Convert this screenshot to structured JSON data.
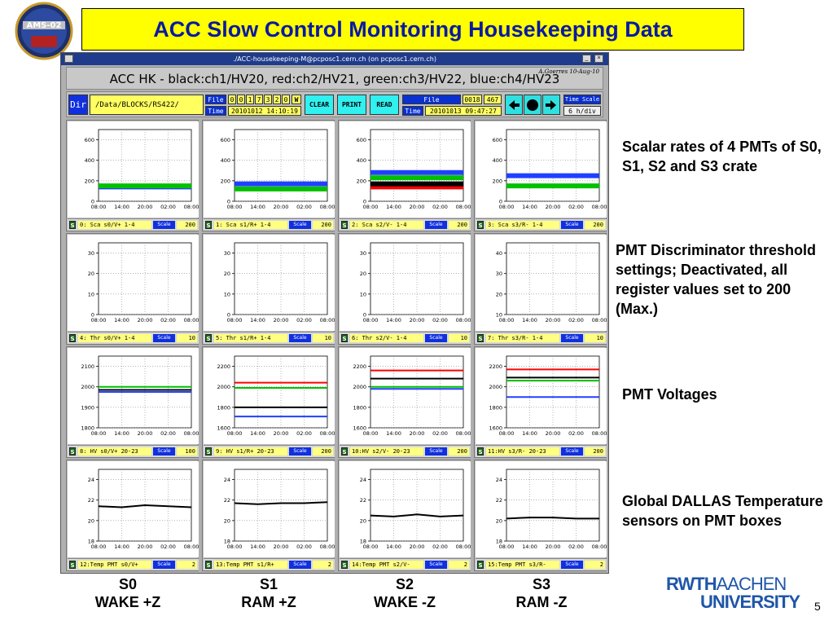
{
  "slide": {
    "title": "ACC Slow Control Monitoring Housekeeping Data",
    "page_number": "5",
    "logo_left_text": "AMS-02",
    "logo_right": {
      "line1": "RWTH",
      "line1b": "AACHEN",
      "line2": "UNIVERSITY"
    }
  },
  "window": {
    "titlebar": "./ACC-housekeeping-M@pcposc1.cern.ch  (on pcposc1.cern.ch)",
    "header_title": "ACC HK - black:ch1/HV20, red:ch2/HV21, green:ch3/HV22, blue:ch4/HV23",
    "author": "A.Goerres 10-Aug-10"
  },
  "toolbar": {
    "dir_label": "Dir",
    "dir_path": "/Data/BLOCKS/RS422/",
    "file_label": "File",
    "file_digits": [
      "0",
      "0",
      "1",
      "7",
      "3",
      "2",
      "0"
    ],
    "file_w": "W",
    "time_label": "Time",
    "time1": "20101012 14:10:19",
    "clear": "CLEAR",
    "print": "PRINT",
    "read": "READ",
    "file2_label": "File",
    "file2_val_a": "0018",
    "file2_val_b": "467",
    "time2_label": "Time",
    "time2": "20101013 09:47:27",
    "time_scale_label": "Time Scale",
    "time_scale_val": "6 h/div"
  },
  "x_ticks": [
    "08:00",
    "14:00",
    "20:00",
    "02:00",
    "08:00"
  ],
  "colors": {
    "ch1": "#000000",
    "ch2": "#ff0000",
    "ch3": "#00c000",
    "ch4": "#2040ff"
  },
  "rows": [
    {
      "panels": [
        {
          "name": "0: Sca s0/V+ 1-4",
          "scale": "Scale",
          "val": "200",
          "yticks": [
            "0",
            "200",
            "400",
            "600"
          ],
          "ylim": [
            0,
            700
          ]
        },
        {
          "name": "1: Sca s1/R+ 1-4",
          "scale": "Scale",
          "val": "200",
          "yticks": [
            "0",
            "200",
            "400",
            "600"
          ],
          "ylim": [
            0,
            700
          ]
        },
        {
          "name": "2: Sca s2/V- 1-4",
          "scale": "Scale",
          "val": "200",
          "yticks": [
            "0",
            "200",
            "400",
            "600"
          ],
          "ylim": [
            0,
            700
          ]
        },
        {
          "name": "3: Sca s3/R- 1-4",
          "scale": "Scale",
          "val": "200",
          "yticks": [
            "0",
            "200",
            "400",
            "600"
          ],
          "ylim": [
            0,
            700
          ]
        }
      ]
    },
    {
      "panels": [
        {
          "name": "4: Thr s0/V+ 1-4",
          "scale": "Scale",
          "val": "10",
          "yticks": [
            "0",
            "10",
            "20",
            "30"
          ],
          "ylim": [
            0,
            35
          ]
        },
        {
          "name": "5: Thr s1/R+ 1-4",
          "scale": "Scale",
          "val": "10",
          "yticks": [
            "0",
            "10",
            "20",
            "30"
          ],
          "ylim": [
            0,
            35
          ]
        },
        {
          "name": "6: Thr s2/V- 1-4",
          "scale": "Scale",
          "val": "10",
          "yticks": [
            "0",
            "10",
            "20",
            "30"
          ],
          "ylim": [
            0,
            35
          ]
        },
        {
          "name": "7: Thr s3/R- 1-4",
          "scale": "Scale",
          "val": "10",
          "yticks": [
            "10",
            "20",
            "30",
            "40"
          ],
          "ylim": [
            10,
            45
          ]
        }
      ]
    },
    {
      "panels": [
        {
          "name": "8: HV s0/V+ 20-23",
          "scale": "Scale",
          "val": "100",
          "yticks": [
            "1800",
            "1900",
            "2000",
            "2100"
          ],
          "ylim": [
            1800,
            2150
          ]
        },
        {
          "name": "9: HV s1/R+ 20-23",
          "scale": "Scale",
          "val": "200",
          "yticks": [
            "1600",
            "1800",
            "2000",
            "2200"
          ],
          "ylim": [
            1600,
            2300
          ]
        },
        {
          "name": "10:HV s2/V- 20-23",
          "scale": "Scale",
          "val": "200",
          "yticks": [
            "1600",
            "1800",
            "2000",
            "2200"
          ],
          "ylim": [
            1600,
            2300
          ]
        },
        {
          "name": "11:HV s3/R- 20-23",
          "scale": "Scale",
          "val": "200",
          "yticks": [
            "1600",
            "1800",
            "2000",
            "2200"
          ],
          "ylim": [
            1600,
            2300
          ]
        }
      ]
    },
    {
      "panels": [
        {
          "name": "12:Temp PMT s0/V+",
          "scale": "Scale",
          "val": "2",
          "yticks": [
            "18",
            "20",
            "22",
            "24"
          ],
          "ylim": [
            18,
            25
          ]
        },
        {
          "name": "13:Temp PMT s1/R+",
          "scale": "Scale",
          "val": "2",
          "yticks": [
            "18",
            "20",
            "22",
            "24"
          ],
          "ylim": [
            18,
            25
          ]
        },
        {
          "name": "14:Temp PMT s2/V-",
          "scale": "Scale",
          "val": "2",
          "yticks": [
            "18",
            "20",
            "22",
            "24"
          ],
          "ylim": [
            18,
            25
          ]
        },
        {
          "name": "15:Temp PMT s3/R-",
          "scale": "Scale",
          "val": "2",
          "yticks": [
            "18",
            "20",
            "22",
            "24"
          ],
          "ylim": [
            18,
            25
          ]
        }
      ]
    }
  ],
  "chart_data": [
    {
      "type": "line",
      "x": [
        "08:00",
        "14:00",
        "20:00",
        "02:00",
        "08:00"
      ],
      "ylim": [
        0,
        700
      ],
      "series": [
        {
          "color": "#2040ff",
          "values": [
            140,
            140,
            140,
            140,
            140
          ]
        },
        {
          "color": "#00c000",
          "values": [
            150,
            150,
            150,
            150,
            150
          ]
        }
      ]
    },
    {
      "type": "line",
      "x": [
        "08:00",
        "14:00",
        "20:00",
        "02:00",
        "08:00"
      ],
      "ylim": [
        0,
        700
      ],
      "series": [
        {
          "color": "#2040ff",
          "values": [
            170,
            170,
            170,
            170,
            170
          ]
        },
        {
          "color": "#00c000",
          "values": [
            120,
            120,
            120,
            120,
            120
          ]
        }
      ]
    },
    {
      "type": "line",
      "x": [
        "08:00",
        "14:00",
        "20:00",
        "02:00",
        "08:00"
      ],
      "ylim": [
        0,
        700
      ],
      "series": [
        {
          "color": "#2040ff",
          "values": [
            280,
            280,
            280,
            280,
            280
          ]
        },
        {
          "color": "#00c000",
          "values": [
            230,
            230,
            230,
            230,
            230
          ]
        },
        {
          "color": "#ff0000",
          "values": [
            140,
            140,
            140,
            140,
            140
          ]
        },
        {
          "color": "#000000",
          "values": [
            170,
            170,
            170,
            170,
            170
          ]
        }
      ]
    },
    {
      "type": "line",
      "x": [
        "08:00",
        "14:00",
        "20:00",
        "02:00",
        "08:00"
      ],
      "ylim": [
        0,
        700
      ],
      "series": [
        {
          "color": "#2040ff",
          "values": [
            250,
            250,
            250,
            250,
            250
          ]
        },
        {
          "color": "#00c000",
          "values": [
            150,
            150,
            150,
            150,
            150
          ]
        }
      ]
    },
    {
      "type": "line",
      "x": [
        "08:00",
        "14:00",
        "20:00",
        "02:00",
        "08:00"
      ],
      "ylim": [
        0,
        35
      ],
      "series": []
    },
    {
      "type": "line",
      "x": [
        "08:00",
        "14:00",
        "20:00",
        "02:00",
        "08:00"
      ],
      "ylim": [
        0,
        35
      ],
      "series": []
    },
    {
      "type": "line",
      "x": [
        "08:00",
        "14:00",
        "20:00",
        "02:00",
        "08:00"
      ],
      "ylim": [
        0,
        35
      ],
      "series": []
    },
    {
      "type": "line",
      "x": [
        "08:00",
        "14:00",
        "20:00",
        "02:00",
        "08:00"
      ],
      "ylim": [
        10,
        45
      ],
      "series": []
    },
    {
      "type": "line",
      "x": [
        "08:00",
        "14:00",
        "20:00",
        "02:00",
        "08:00"
      ],
      "ylim": [
        1800,
        2150
      ],
      "series": [
        {
          "color": "#00c000",
          "values": [
            2000,
            2000,
            2000,
            2000,
            2000
          ]
        },
        {
          "color": "#000000",
          "values": [
            1985,
            1985,
            1985,
            1985,
            1985
          ]
        },
        {
          "color": "#2040ff",
          "values": [
            1975,
            1975,
            1975,
            1975,
            1975
          ]
        }
      ]
    },
    {
      "type": "line",
      "x": [
        "08:00",
        "14:00",
        "20:00",
        "02:00",
        "08:00"
      ],
      "ylim": [
        1600,
        2300
      ],
      "series": [
        {
          "color": "#ff0000",
          "values": [
            2040,
            2040,
            2040,
            2040,
            2040
          ]
        },
        {
          "color": "#00c000",
          "values": [
            1990,
            1990,
            1990,
            1990,
            1990
          ]
        },
        {
          "color": "#000000",
          "values": [
            1800,
            1800,
            1800,
            1800,
            1800
          ]
        },
        {
          "color": "#2040ff",
          "values": [
            1710,
            1710,
            1710,
            1710,
            1710
          ]
        }
      ]
    },
    {
      "type": "line",
      "x": [
        "08:00",
        "14:00",
        "20:00",
        "02:00",
        "08:00"
      ],
      "ylim": [
        1600,
        2300
      ],
      "series": [
        {
          "color": "#ff0000",
          "values": [
            2160,
            2160,
            2160,
            2160,
            2160
          ]
        },
        {
          "color": "#000000",
          "values": [
            2080,
            2080,
            2080,
            2080,
            2080
          ]
        },
        {
          "color": "#00c000",
          "values": [
            2000,
            2000,
            2000,
            2000,
            2000
          ]
        },
        {
          "color": "#2040ff",
          "values": [
            1980,
            1980,
            1980,
            1980,
            1980
          ]
        }
      ]
    },
    {
      "type": "line",
      "x": [
        "08:00",
        "14:00",
        "20:00",
        "02:00",
        "08:00"
      ],
      "ylim": [
        1600,
        2300
      ],
      "series": [
        {
          "color": "#ff0000",
          "values": [
            2170,
            2170,
            2170,
            2170,
            2170
          ]
        },
        {
          "color": "#000000",
          "values": [
            2090,
            2090,
            2090,
            2090,
            2090
          ]
        },
        {
          "color": "#00c000",
          "values": [
            2060,
            2060,
            2060,
            2060,
            2060
          ]
        },
        {
          "color": "#2040ff",
          "values": [
            1900,
            1900,
            1900,
            1900,
            1900
          ]
        }
      ]
    },
    {
      "type": "line",
      "x": [
        "08:00",
        "14:00",
        "20:00",
        "02:00",
        "08:00"
      ],
      "ylim": [
        18,
        25
      ],
      "series": [
        {
          "color": "#000000",
          "values": [
            21.4,
            21.3,
            21.5,
            21.4,
            21.3
          ]
        }
      ]
    },
    {
      "type": "line",
      "x": [
        "08:00",
        "14:00",
        "20:00",
        "02:00",
        "08:00"
      ],
      "ylim": [
        18,
        25
      ],
      "series": [
        {
          "color": "#000000",
          "values": [
            21.7,
            21.6,
            21.7,
            21.7,
            21.8
          ]
        }
      ]
    },
    {
      "type": "line",
      "x": [
        "08:00",
        "14:00",
        "20:00",
        "02:00",
        "08:00"
      ],
      "ylim": [
        18,
        25
      ],
      "series": [
        {
          "color": "#000000",
          "values": [
            20.5,
            20.4,
            20.6,
            20.4,
            20.5
          ]
        }
      ]
    },
    {
      "type": "line",
      "x": [
        "08:00",
        "14:00",
        "20:00",
        "02:00",
        "08:00"
      ],
      "ylim": [
        18,
        25
      ],
      "series": [
        {
          "color": "#000000",
          "values": [
            20.2,
            20.3,
            20.3,
            20.2,
            20.2
          ]
        }
      ]
    }
  ],
  "descriptions": [
    {
      "text": "Scalar rates of 4 PMTs of S0, S1, S2 and S3 crate"
    },
    {
      "text": "PMT Discriminator threshold settings; Deactivated, all register values set to 200 (Max.)"
    },
    {
      "text": "PMT Voltages"
    },
    {
      "text": "Global DALLAS Temperature sensors on PMT boxes"
    }
  ],
  "columns": [
    {
      "line1": "S0",
      "line2": "WAKE +Z"
    },
    {
      "line1": "S1",
      "line2": "RAM +Z"
    },
    {
      "line1": "S2",
      "line2": "WAKE -Z"
    },
    {
      "line1": "S3",
      "line2": "RAM -Z"
    }
  ]
}
